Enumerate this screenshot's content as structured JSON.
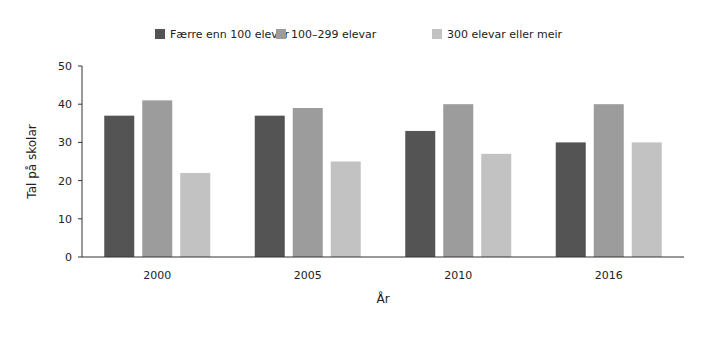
{
  "chart_data": {
    "type": "bar",
    "x_label": "År",
    "y_label": "Tal på skolar",
    "categories": [
      "2000",
      "2005",
      "2010",
      "2016"
    ],
    "series": [
      {
        "name": "Færre enn 100 elevar",
        "color": "#545454",
        "values": [
          37,
          37,
          33,
          30
        ]
      },
      {
        "name": "100–299 elevar",
        "color": "#9c9c9c",
        "values": [
          41,
          39,
          40,
          40
        ]
      },
      {
        "name": "300 elevar eller meir",
        "color": "#c2c2c2",
        "values": [
          22,
          25,
          27,
          30
        ]
      }
    ],
    "ylim": [
      0,
      50
    ],
    "yticks": [
      0,
      10,
      20,
      30,
      40,
      50
    ],
    "grid": false,
    "legend": "top"
  }
}
